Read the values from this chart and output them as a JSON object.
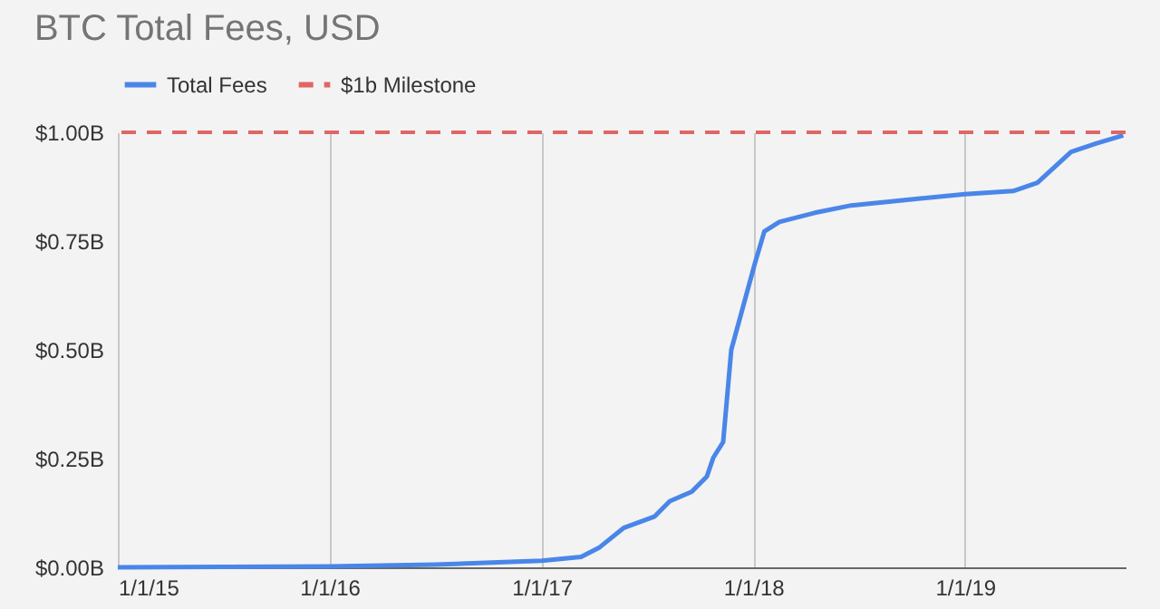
{
  "chart_data": {
    "type": "line",
    "title": "BTC Total Fees, USD",
    "x": [
      "2015-01-01",
      "2015-07-01",
      "2016-01-01",
      "2016-07-01",
      "2017-01-01",
      "2017-03-10",
      "2017-04-11",
      "2017-05-23",
      "2017-07-15",
      "2017-08-10",
      "2017-09-17",
      "2017-10-13",
      "2017-10-24",
      "2017-11-10",
      "2017-11-24",
      "2018-01-04",
      "2018-01-20",
      "2018-02-15",
      "2018-04-17",
      "2018-06-19",
      "2018-10-01",
      "2019-01-01",
      "2019-03-25",
      "2019-05-06",
      "2019-06-07",
      "2019-07-03",
      "2019-08-15",
      "2019-10-01"
    ],
    "series": [
      {
        "name": "Total Fees",
        "color": "#4a86e8",
        "values": [
          0,
          0.001,
          0.002,
          0.006,
          0.015,
          0.024,
          0.046,
          0.091,
          0.117,
          0.152,
          0.174,
          0.209,
          0.252,
          0.288,
          0.5,
          0.7,
          0.772,
          0.794,
          0.815,
          0.832,
          0.846,
          0.858,
          0.865,
          0.884,
          0.923,
          0.955,
          0.974,
          0.993
        ]
      }
    ],
    "ref_lines": [
      {
        "axis": "y",
        "value": 1.0,
        "label": "$1b Milestone",
        "color": "#e06666",
        "line_style": "dashed"
      }
    ],
    "xlim": [
      "2015-01-01",
      "2019-10-05"
    ],
    "xticks": [
      {
        "value": "2015-01-01",
        "label": "1/1/15"
      },
      {
        "value": "2016-01-01",
        "label": "1/1/16"
      },
      {
        "value": "2017-01-01",
        "label": "1/1/17"
      },
      {
        "value": "2018-01-01",
        "label": "1/1/18"
      },
      {
        "value": "2019-01-01",
        "label": "1/1/19"
      }
    ],
    "ylim": [
      0,
      1.0
    ],
    "yticks": [
      {
        "value": 0,
        "label": "$0.00B"
      },
      {
        "value": 0.25,
        "label": "$0.25B"
      },
      {
        "value": 0.5,
        "label": "$0.50B"
      },
      {
        "value": 0.75,
        "label": "$0.75B"
      },
      {
        "value": 1.0,
        "label": "$1.00B"
      }
    ],
    "grid": "x",
    "legend": "top",
    "line_style": "solid",
    "marker": "none"
  }
}
